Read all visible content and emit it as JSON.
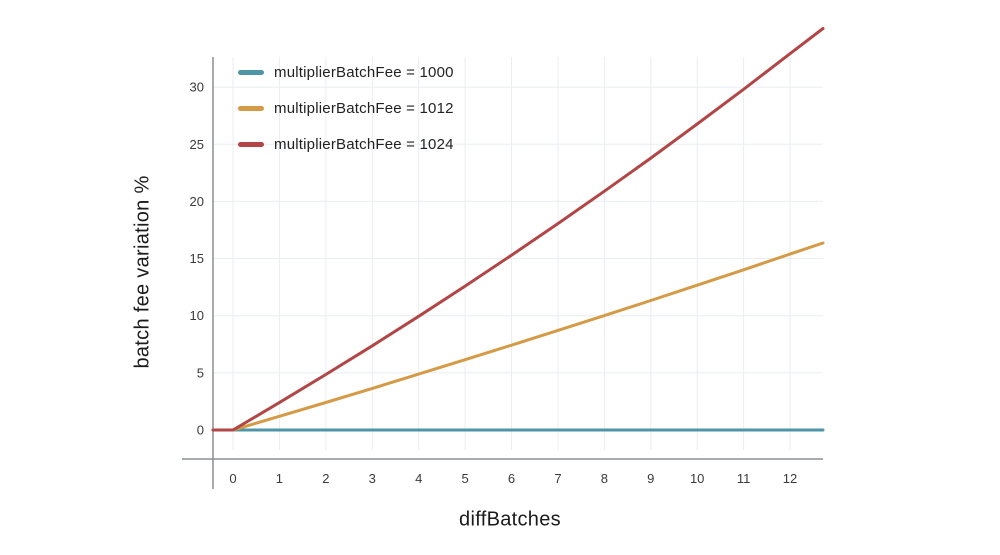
{
  "chart_data": {
    "type": "line",
    "title": "",
    "xlabel": "diffBatches",
    "ylabel": "batch fee variation %",
    "x": [
      0,
      1,
      2,
      3,
      4,
      5,
      6,
      7,
      8,
      9,
      10,
      11,
      12
    ],
    "x_ticks": [
      0,
      1,
      2,
      3,
      4,
      5,
      6,
      7,
      8,
      9,
      10,
      11,
      12
    ],
    "y_ticks": [
      0,
      5,
      10,
      15,
      20,
      25,
      30
    ],
    "xlim": [
      0,
      12.7
    ],
    "ylim": [
      0,
      33
    ],
    "grid": true,
    "legend_position": "top-left-inside",
    "series": [
      {
        "name": "multiplierBatchFee = 1000",
        "color": "#4d95a7",
        "values": [
          0,
          0,
          0,
          0,
          0,
          0,
          0,
          0,
          0,
          0,
          0,
          0,
          0
        ]
      },
      {
        "name": "multiplierBatchFee = 1012",
        "color": "#d59a45",
        "values": [
          0,
          1.2,
          2.41,
          3.64,
          4.89,
          6.15,
          7.42,
          8.71,
          10.01,
          11.33,
          12.67,
          14.02,
          15.39
        ]
      },
      {
        "name": "multiplierBatchFee = 1024",
        "color": "#b24545",
        "values": [
          0,
          2.4,
          4.86,
          7.37,
          9.95,
          12.59,
          15.29,
          18.06,
          20.89,
          23.79,
          26.77,
          29.81,
          32.92
        ]
      }
    ]
  },
  "colors": {
    "background": "#ffffff",
    "axis_line": "#8a8f94",
    "grid_line": "#e8eef2",
    "tick_text": "#3a3a3a",
    "title_text": "#1b1b1b"
  }
}
